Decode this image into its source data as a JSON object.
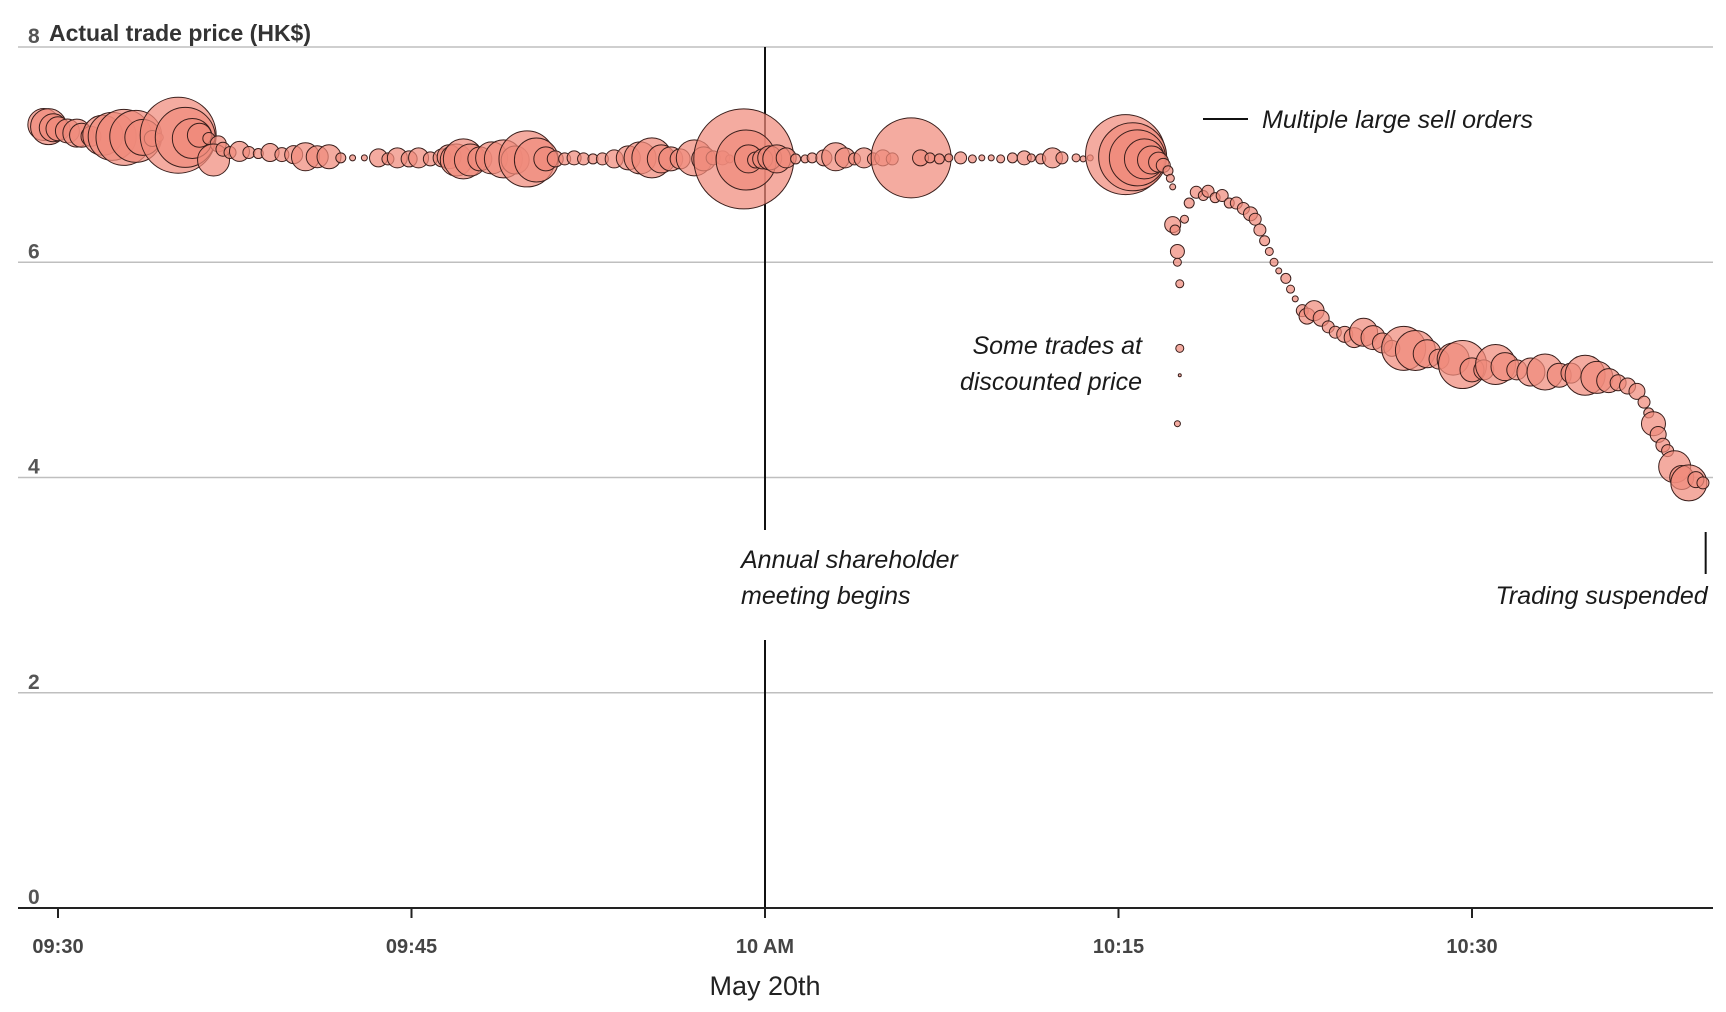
{
  "chart_data": {
    "type": "scatter",
    "title": "",
    "ylabel": "Actual trade price (HK$)",
    "xlabel": "May 20th",
    "ylim": [
      0,
      8
    ],
    "y_ticks": [
      "0",
      "2",
      "4",
      "6",
      "8"
    ],
    "xlim": [
      "09:28.5",
      "10:40.0"
    ],
    "x_ticks": [
      {
        "t": "09:30",
        "label": "09:30"
      },
      {
        "t": "09:45",
        "label": "09:45"
      },
      {
        "t": "10:00",
        "label": "10 AM"
      },
      {
        "t": "10:15",
        "label": "10:15"
      },
      {
        "t": "10:30",
        "label": "10:30"
      }
    ],
    "grid": true,
    "annotations": [
      {
        "label": "Annual shareholder meeting begins",
        "lines": [
          "Annual shareholder",
          "meeting begins"
        ],
        "t": "10:00"
      },
      {
        "label": "Multiple large sell orders",
        "lines": [
          "Multiple large sell orders"
        ],
        "t": "10:17.5",
        "y": 7.2
      },
      {
        "label": "Some trades at discounted price",
        "lines": [
          "Some trades at",
          "discounted price"
        ],
        "t": "10:17.5",
        "y": 5.0
      },
      {
        "label": "Trading suspended",
        "lines": [
          "Trading suspended"
        ],
        "t": "10:40.0"
      }
    ],
    "points": [
      {
        "t": "09:29.4",
        "y": 7.28,
        "r": 16
      },
      {
        "t": "09:29.6",
        "y": 7.26,
        "r": 18
      },
      {
        "t": "09:29.8",
        "y": 7.25,
        "r": 14
      },
      {
        "t": "09:30.0",
        "y": 7.24,
        "r": 12
      },
      {
        "t": "09:30.4",
        "y": 7.22,
        "r": 12
      },
      {
        "t": "09:30.8",
        "y": 7.2,
        "r": 14
      },
      {
        "t": "09:31.0",
        "y": 7.18,
        "r": 12
      },
      {
        "t": "09:31.4",
        "y": 7.17,
        "r": 10
      },
      {
        "t": "09:31.9",
        "y": 7.18,
        "r": 20
      },
      {
        "t": "09:32.3",
        "y": 7.17,
        "r": 24
      },
      {
        "t": "09:32.8",
        "y": 7.16,
        "r": 28
      },
      {
        "t": "09:33.3",
        "y": 7.17,
        "r": 26
      },
      {
        "t": "09:33.6",
        "y": 7.16,
        "r": 18
      },
      {
        "t": "09:34.0",
        "y": 7.15,
        "r": 8
      },
      {
        "t": "09:34.3",
        "y": 7.16,
        "r": 4
      },
      {
        "t": "09:35.1",
        "y": 7.18,
        "r": 38
      },
      {
        "t": "09:35.4",
        "y": 7.16,
        "r": 30
      },
      {
        "t": "09:35.7",
        "y": 7.15,
        "r": 20
      },
      {
        "t": "09:36.0",
        "y": 7.18,
        "r": 12
      },
      {
        "t": "09:36.4",
        "y": 7.15,
        "r": 6
      },
      {
        "t": "09:36.8",
        "y": 7.1,
        "r": 8
      },
      {
        "t": "09:36.6",
        "y": 6.95,
        "r": 16
      },
      {
        "t": "09:37.0",
        "y": 7.05,
        "r": 7
      },
      {
        "t": "09:37.3",
        "y": 7.02,
        "r": 6
      },
      {
        "t": "09:37.7",
        "y": 7.03,
        "r": 10
      },
      {
        "t": "09:38.1",
        "y": 7.02,
        "r": 6
      },
      {
        "t": "09:38.5",
        "y": 7.01,
        "r": 5
      },
      {
        "t": "09:39.0",
        "y": 7.02,
        "r": 9
      },
      {
        "t": "09:39.5",
        "y": 7.0,
        "r": 7
      },
      {
        "t": "09:40.0",
        "y": 7.0,
        "r": 9
      },
      {
        "t": "09:40.5",
        "y": 6.98,
        "r": 14
      },
      {
        "t": "09:41.0",
        "y": 6.98,
        "r": 11
      },
      {
        "t": "09:41.5",
        "y": 6.98,
        "r": 12
      },
      {
        "t": "09:42.0",
        "y": 6.97,
        "r": 5
      },
      {
        "t": "09:42.5",
        "y": 6.97,
        "r": 3
      },
      {
        "t": "09:43.0",
        "y": 6.97,
        "r": 3
      },
      {
        "t": "09:43.6",
        "y": 6.97,
        "r": 9
      },
      {
        "t": "09:44.0",
        "y": 6.96,
        "r": 6
      },
      {
        "t": "09:44.4",
        "y": 6.97,
        "r": 10
      },
      {
        "t": "09:44.9",
        "y": 6.96,
        "r": 8
      },
      {
        "t": "09:45.3",
        "y": 6.97,
        "r": 10
      },
      {
        "t": "09:45.8",
        "y": 6.96,
        "r": 7
      },
      {
        "t": "09:46.3",
        "y": 6.97,
        "r": 9
      },
      {
        "t": "09:46.6",
        "y": 6.98,
        "r": 12
      },
      {
        "t": "09:46.9",
        "y": 6.95,
        "r": 16
      },
      {
        "t": "09:47.2",
        "y": 6.96,
        "r": 20
      },
      {
        "t": "09:47.5",
        "y": 6.95,
        "r": 16
      },
      {
        "t": "09:47.9",
        "y": 6.96,
        "r": 12
      },
      {
        "t": "09:48.4",
        "y": 6.97,
        "r": 16
      },
      {
        "t": "09:48.9",
        "y": 6.96,
        "r": 19
      },
      {
        "t": "09:49.4",
        "y": 6.95,
        "r": 14
      },
      {
        "t": "09:49.9",
        "y": 6.96,
        "r": 28
      },
      {
        "t": "09:50.3",
        "y": 6.95,
        "r": 22
      },
      {
        "t": "09:50.7",
        "y": 6.96,
        "r": 12
      },
      {
        "t": "09:51.1",
        "y": 6.96,
        "r": 8
      },
      {
        "t": "09:51.5",
        "y": 6.96,
        "r": 6
      },
      {
        "t": "09:51.9",
        "y": 6.97,
        "r": 7
      },
      {
        "t": "09:52.3",
        "y": 6.96,
        "r": 6
      },
      {
        "t": "09:52.7",
        "y": 6.96,
        "r": 5
      },
      {
        "t": "09:53.1",
        "y": 6.96,
        "r": 6
      },
      {
        "t": "09:53.6",
        "y": 6.96,
        "r": 9
      },
      {
        "t": "09:54.2",
        "y": 6.97,
        "r": 12
      },
      {
        "t": "09:54.7",
        "y": 6.97,
        "r": 16
      },
      {
        "t": "09:55.2",
        "y": 6.97,
        "r": 20
      },
      {
        "t": "09:55.6",
        "y": 6.96,
        "r": 14
      },
      {
        "t": "09:56.0",
        "y": 6.96,
        "r": 12
      },
      {
        "t": "09:56.4",
        "y": 6.96,
        "r": 10
      },
      {
        "t": "09:57.0",
        "y": 6.97,
        "r": 18
      },
      {
        "t": "09:57.4",
        "y": 6.96,
        "r": 12
      },
      {
        "t": "09:57.8",
        "y": 6.97,
        "r": 7
      },
      {
        "t": "09:58.2",
        "y": 6.97,
        "r": 7
      },
      {
        "t": "09:58.5",
        "y": 6.96,
        "r": 4
      },
      {
        "t": "09:59.1",
        "y": 6.96,
        "r": 50
      },
      {
        "t": "09:59.2",
        "y": 6.95,
        "r": 30
      },
      {
        "t": "09:59.3",
        "y": 6.96,
        "r": 14
      },
      {
        "t": "09:59.6",
        "y": 6.95,
        "r": 8
      },
      {
        "t": "09:59.9",
        "y": 6.96,
        "r": 10
      },
      {
        "t": "10:00.2",
        "y": 6.97,
        "r": 12
      },
      {
        "t": "10:00.5",
        "y": 6.96,
        "r": 14
      },
      {
        "t": "10:00.9",
        "y": 6.97,
        "r": 10
      },
      {
        "t": "10:01.3",
        "y": 6.96,
        "r": 5
      },
      {
        "t": "10:01.7",
        "y": 6.96,
        "r": 4
      },
      {
        "t": "10:02.0",
        "y": 6.97,
        "r": 5
      },
      {
        "t": "10:02.5",
        "y": 6.97,
        "r": 8
      },
      {
        "t": "10:03.0",
        "y": 6.98,
        "r": 14
      },
      {
        "t": "10:03.4",
        "y": 6.97,
        "r": 10
      },
      {
        "t": "10:03.8",
        "y": 6.96,
        "r": 6
      },
      {
        "t": "10:04.2",
        "y": 6.97,
        "r": 10
      },
      {
        "t": "10:04.6",
        "y": 6.96,
        "r": 6
      },
      {
        "t": "10:05.0",
        "y": 6.97,
        "r": 8
      },
      {
        "t": "10:05.4",
        "y": 6.96,
        "r": 6
      },
      {
        "t": "10:06.2",
        "y": 6.97,
        "r": 40
      },
      {
        "t": "10:06.6",
        "y": 6.97,
        "r": 8
      },
      {
        "t": "10:07.0",
        "y": 6.97,
        "r": 5
      },
      {
        "t": "10:07.4",
        "y": 6.96,
        "r": 5
      },
      {
        "t": "10:07.8",
        "y": 6.97,
        "r": 4
      },
      {
        "t": "10:08.3",
        "y": 6.97,
        "r": 6
      },
      {
        "t": "10:08.8",
        "y": 6.96,
        "r": 4
      },
      {
        "t": "10:09.2",
        "y": 6.97,
        "r": 3
      },
      {
        "t": "10:09.6",
        "y": 6.97,
        "r": 3
      },
      {
        "t": "10:10.0",
        "y": 6.96,
        "r": 4
      },
      {
        "t": "10:10.5",
        "y": 6.97,
        "r": 5
      },
      {
        "t": "10:11.0",
        "y": 6.97,
        "r": 7
      },
      {
        "t": "10:11.3",
        "y": 6.97,
        "r": 4
      },
      {
        "t": "10:11.7",
        "y": 6.96,
        "r": 5
      },
      {
        "t": "10:12.2",
        "y": 6.97,
        "r": 10
      },
      {
        "t": "10:12.6",
        "y": 6.97,
        "r": 6
      },
      {
        "t": "10:13.2",
        "y": 6.97,
        "r": 4
      },
      {
        "t": "10:13.5",
        "y": 6.96,
        "r": 3
      },
      {
        "t": "10:13.8",
        "y": 6.97,
        "r": 3
      },
      {
        "t": "10:15.3",
        "y": 7.0,
        "r": 40
      },
      {
        "t": "10:15.6",
        "y": 6.98,
        "r": 34
      },
      {
        "t": "10:15.8",
        "y": 6.97,
        "r": 28
      },
      {
        "t": "10:16.1",
        "y": 6.96,
        "r": 20
      },
      {
        "t": "10:16.4",
        "y": 6.95,
        "r": 14
      },
      {
        "t": "10:16.7",
        "y": 6.93,
        "r": 10
      },
      {
        "t": "10:16.9",
        "y": 6.9,
        "r": 7
      },
      {
        "t": "10:17.1",
        "y": 6.85,
        "r": 5
      },
      {
        "t": "10:17.2",
        "y": 6.78,
        "r": 4
      },
      {
        "t": "10:17.3",
        "y": 6.7,
        "r": 3
      },
      {
        "t": "10:17.3",
        "y": 6.35,
        "r": 8
      },
      {
        "t": "10:17.4",
        "y": 6.3,
        "r": 5
      },
      {
        "t": "10:17.5",
        "y": 6.1,
        "r": 7
      },
      {
        "t": "10:17.5",
        "y": 6.0,
        "r": 4
      },
      {
        "t": "10:17.6",
        "y": 5.8,
        "r": 4
      },
      {
        "t": "10:17.6",
        "y": 5.2,
        "r": 4
      },
      {
        "t": "10:17.6",
        "y": 4.95,
        "r": 1.5
      },
      {
        "t": "10:17.5",
        "y": 4.5,
        "r": 3
      },
      {
        "t": "10:17.8",
        "y": 6.4,
        "r": 4
      },
      {
        "t": "10:18.0",
        "y": 6.55,
        "r": 5
      },
      {
        "t": "10:18.3",
        "y": 6.65,
        "r": 6
      },
      {
        "t": "10:18.6",
        "y": 6.62,
        "r": 5
      },
      {
        "t": "10:18.8",
        "y": 6.66,
        "r": 6
      },
      {
        "t": "10:19.1",
        "y": 6.6,
        "r": 5
      },
      {
        "t": "10:19.4",
        "y": 6.62,
        "r": 6
      },
      {
        "t": "10:19.7",
        "y": 6.55,
        "r": 5
      },
      {
        "t": "10:20.0",
        "y": 6.55,
        "r": 6
      },
      {
        "t": "10:20.3",
        "y": 6.5,
        "r": 6
      },
      {
        "t": "10:20.6",
        "y": 6.45,
        "r": 7
      },
      {
        "t": "10:20.8",
        "y": 6.4,
        "r": 6
      },
      {
        "t": "10:21.0",
        "y": 6.3,
        "r": 6
      },
      {
        "t": "10:21.2",
        "y": 6.2,
        "r": 5
      },
      {
        "t": "10:21.4",
        "y": 6.1,
        "r": 4
      },
      {
        "t": "10:21.6",
        "y": 6.0,
        "r": 4
      },
      {
        "t": "10:21.8",
        "y": 5.92,
        "r": 3
      },
      {
        "t": "10:22.1",
        "y": 5.85,
        "r": 5
      },
      {
        "t": "10:22.3",
        "y": 5.75,
        "r": 4
      },
      {
        "t": "10:22.5",
        "y": 5.66,
        "r": 3
      },
      {
        "t": "10:22.8",
        "y": 5.55,
        "r": 6
      },
      {
        "t": "10:23.0",
        "y": 5.5,
        "r": 8
      },
      {
        "t": "10:23.3",
        "y": 5.55,
        "r": 10
      },
      {
        "t": "10:23.6",
        "y": 5.48,
        "r": 8
      },
      {
        "t": "10:23.9",
        "y": 5.4,
        "r": 6
      },
      {
        "t": "10:24.2",
        "y": 5.35,
        "r": 6
      },
      {
        "t": "10:24.6",
        "y": 5.33,
        "r": 8
      },
      {
        "t": "10:25.0",
        "y": 5.3,
        "r": 10
      },
      {
        "t": "10:25.4",
        "y": 5.35,
        "r": 14
      },
      {
        "t": "10:25.8",
        "y": 5.3,
        "r": 12
      },
      {
        "t": "10:26.2",
        "y": 5.25,
        "r": 10
      },
      {
        "t": "10:26.6",
        "y": 5.2,
        "r": 8
      },
      {
        "t": "10:27.1",
        "y": 5.2,
        "r": 22
      },
      {
        "t": "10:27.6",
        "y": 5.18,
        "r": 20
      },
      {
        "t": "10:28.1",
        "y": 5.15,
        "r": 14
      },
      {
        "t": "10:28.6",
        "y": 5.1,
        "r": 10
      },
      {
        "t": "10:29.2",
        "y": 5.1,
        "r": 16
      },
      {
        "t": "10:29.6",
        "y": 5.05,
        "r": 24
      },
      {
        "t": "10:30.0",
        "y": 5.0,
        "r": 12
      },
      {
        "t": "10:30.5",
        "y": 5.0,
        "r": 10
      },
      {
        "t": "10:31.0",
        "y": 5.05,
        "r": 20
      },
      {
        "t": "10:31.4",
        "y": 5.03,
        "r": 14
      },
      {
        "t": "10:31.9",
        "y": 5.0,
        "r": 10
      },
      {
        "t": "10:32.5",
        "y": 4.98,
        "r": 14
      },
      {
        "t": "10:33.1",
        "y": 4.98,
        "r": 18
      },
      {
        "t": "10:33.7",
        "y": 4.95,
        "r": 12
      },
      {
        "t": "10:34.2",
        "y": 4.97,
        "r": 10
      },
      {
        "t": "10:34.8",
        "y": 4.95,
        "r": 20
      },
      {
        "t": "10:35.3",
        "y": 4.93,
        "r": 16
      },
      {
        "t": "10:35.8",
        "y": 4.9,
        "r": 12
      },
      {
        "t": "10:36.2",
        "y": 4.88,
        "r": 8
      },
      {
        "t": "10:36.6",
        "y": 4.85,
        "r": 8
      },
      {
        "t": "10:37.0",
        "y": 4.8,
        "r": 8
      },
      {
        "t": "10:37.3",
        "y": 4.7,
        "r": 6
      },
      {
        "t": "10:37.5",
        "y": 4.6,
        "r": 5
      },
      {
        "t": "10:37.7",
        "y": 4.5,
        "r": 12
      },
      {
        "t": "10:37.9",
        "y": 4.4,
        "r": 8
      },
      {
        "t": "10:38.1",
        "y": 4.3,
        "r": 7
      },
      {
        "t": "10:38.3",
        "y": 4.25,
        "r": 6
      },
      {
        "t": "10:38.6",
        "y": 4.1,
        "r": 16
      },
      {
        "t": "10:38.9",
        "y": 4.0,
        "r": 12
      },
      {
        "t": "10:39.2",
        "y": 3.95,
        "r": 18
      },
      {
        "t": "10:39.5",
        "y": 3.98,
        "r": 8
      },
      {
        "t": "10:39.8",
        "y": 3.95,
        "r": 6
      }
    ]
  }
}
